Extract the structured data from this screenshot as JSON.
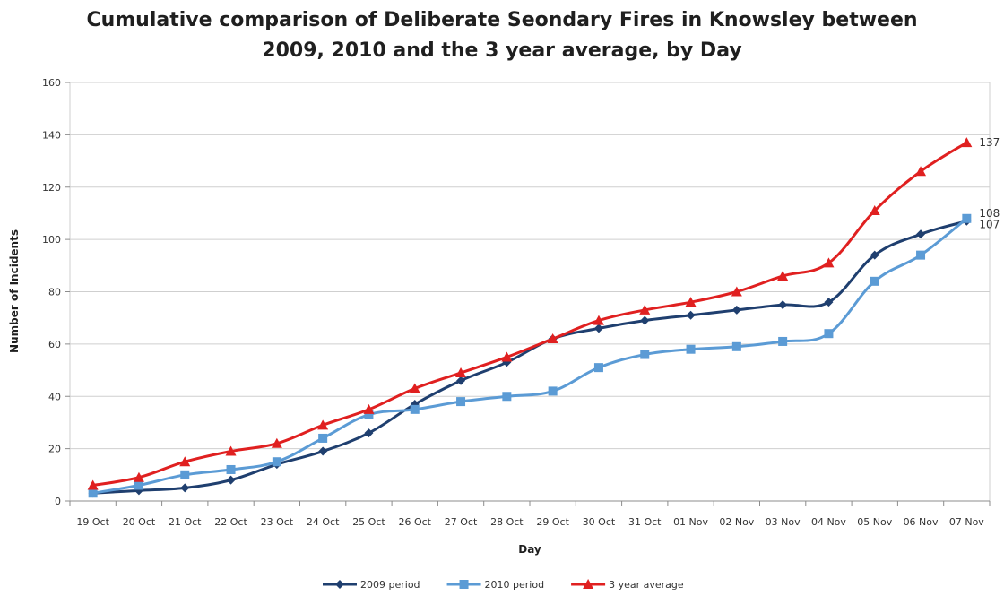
{
  "chart_data": {
    "type": "line",
    "title": [
      "Cumulative comparison of Deliberate Seondary Fires in Knowsley between",
      "2009, 2010 and the 3 year average, by Day"
    ],
    "xlabel": "Day",
    "ylabel": "Number of Incidents",
    "ylim": [
      0,
      160
    ],
    "yticks": [
      0,
      20,
      40,
      60,
      80,
      100,
      120,
      140,
      160
    ],
    "grid": true,
    "legend_position": "bottom",
    "categories": [
      "19 Oct",
      "20 Oct",
      "21 Oct",
      "22 Oct",
      "23 Oct",
      "24 Oct",
      "25 Oct",
      "26 Oct",
      "27 Oct",
      "28 Oct",
      "29 Oct",
      "30 Oct",
      "31 Oct",
      "01 Nov",
      "02 Nov",
      "03 Nov",
      "04 Nov",
      "05 Nov",
      "06 Nov",
      "07 Nov"
    ],
    "series": [
      {
        "name": "2009 period",
        "color": "#1f3f6f",
        "marker": "diamond",
        "values": [
          3,
          4,
          5,
          8,
          14,
          19,
          26,
          37,
          46,
          53,
          62,
          66,
          69,
          71,
          73,
          75,
          76,
          94,
          102,
          107
        ],
        "end_label": "107"
      },
      {
        "name": "2010 period",
        "color": "#5b9bd5",
        "marker": "square",
        "values": [
          3,
          6,
          10,
          12,
          15,
          24,
          33,
          35,
          38,
          40,
          42,
          51,
          56,
          58,
          59,
          61,
          64,
          84,
          94,
          108
        ],
        "end_label": "108"
      },
      {
        "name": "3 year average",
        "color": "#e02020",
        "marker": "triangle",
        "values": [
          6,
          9,
          15,
          19,
          22,
          29,
          35,
          43,
          49,
          55,
          62,
          69,
          73,
          76,
          80,
          86,
          91,
          111,
          126,
          137
        ],
        "end_label": "137"
      }
    ]
  }
}
